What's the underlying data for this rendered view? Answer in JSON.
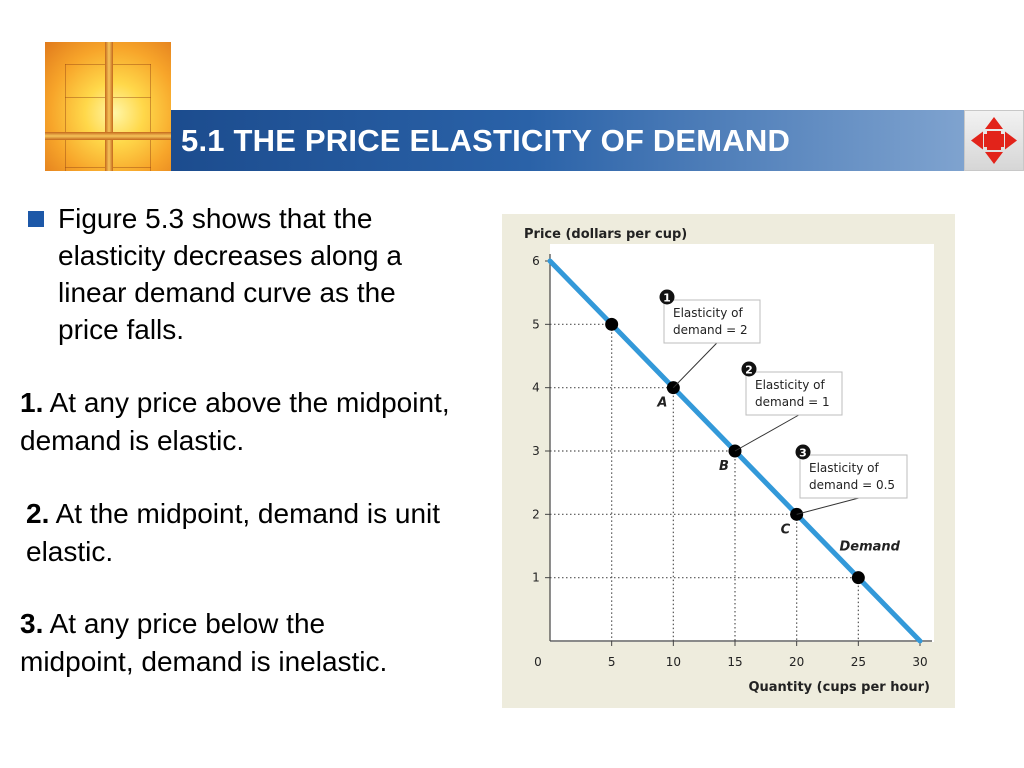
{
  "header": {
    "title": "5.1 THE PRICE ELASTICITY OF DEMAND"
  },
  "body": {
    "bullet": "Figure 5.3 shows that the elasticity decreases along a linear demand curve as the price falls.",
    "items": [
      {
        "num": "1.",
        "text": "At any price above the midpoint, demand is elastic."
      },
      {
        "num": "2.",
        "text": "At the midpoint, demand is unit elastic."
      },
      {
        "num": "3.",
        "text": "At any price below the midpoint, demand is inelastic."
      }
    ]
  },
  "colors": {
    "title_bar": "#2a62a8",
    "bullet": "#1d58a8",
    "demand_line": "#3399d9",
    "chart_bg": "#eeecdd",
    "nav_arrows": "#e2231a"
  },
  "icons": {
    "logo": "cross-sunburst-logo",
    "nav": "four-way-arrows-icon"
  },
  "chart_data": {
    "type": "line",
    "ylabel": "Price (dollars per cup)",
    "xlabel": "Quantity (cups per hour)",
    "xlim": [
      0,
      30
    ],
    "ylim": [
      0,
      6
    ],
    "x_ticks": [
      0,
      5,
      10,
      15,
      20,
      25,
      30
    ],
    "y_ticks": [
      1,
      2,
      3,
      4,
      5,
      6
    ],
    "grid": "dotted lines to marked points",
    "series": [
      {
        "name": "Demand",
        "x": [
          0,
          30
        ],
        "y": [
          6,
          0
        ]
      }
    ],
    "points": [
      {
        "x": 5,
        "y": 5,
        "label": ""
      },
      {
        "x": 10,
        "y": 4,
        "label": "A"
      },
      {
        "x": 15,
        "y": 3,
        "label": "B"
      },
      {
        "x": 20,
        "y": 2,
        "label": "C"
      },
      {
        "x": 25,
        "y": 1,
        "label": ""
      }
    ],
    "annotations": [
      {
        "num": "1",
        "line1": "Elasticity of",
        "line2": "demand = 2",
        "point": 1
      },
      {
        "num": "2",
        "line1": "Elasticity of",
        "line2": "demand = 1",
        "point": 2
      },
      {
        "num": "3",
        "line1": "Elasticity of",
        "line2": "demand = 0.5",
        "point": 3
      }
    ]
  }
}
